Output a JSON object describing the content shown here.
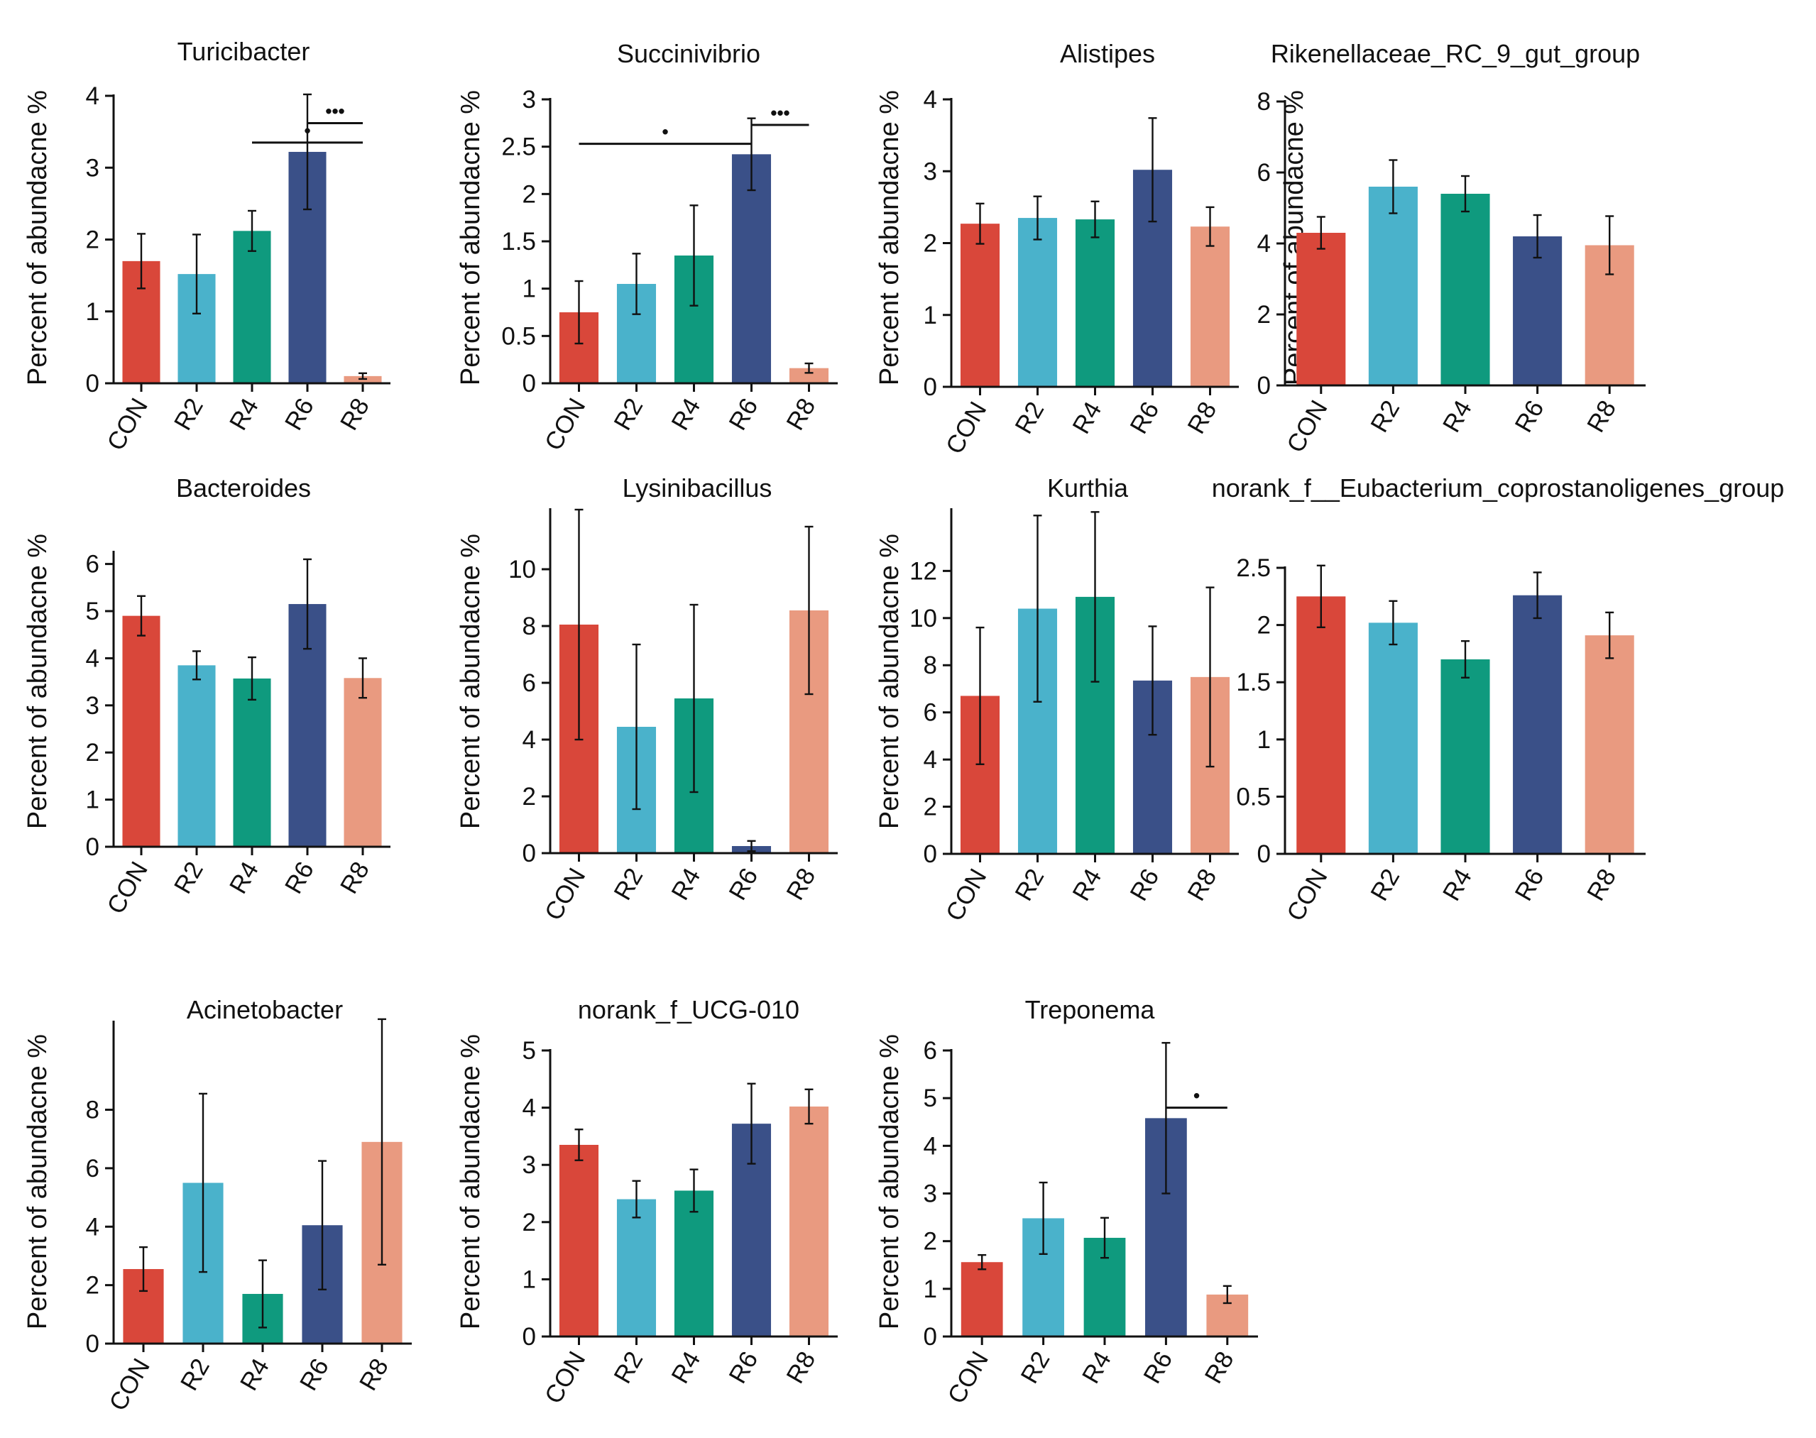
{
  "colors": {
    "CON": "#d9473a",
    "R2": "#4ab2cb",
    "R4": "#0f9a7e",
    "R6": "#3a5088",
    "R8": "#e99a80"
  },
  "chart_data": [
    {
      "type": "bar",
      "title": "Turicibacter",
      "ylabel": "Percent of abundacne %",
      "categories": [
        "CON",
        "R2",
        "R4",
        "R6",
        "R8"
      ],
      "values": [
        1.7,
        1.52,
        2.12,
        3.22,
        0.1
      ],
      "errors": [
        0.38,
        0.55,
        0.28,
        0.8,
        0.04
      ],
      "yticks": [
        0,
        1,
        2,
        3,
        4
      ],
      "ytick_labels": [
        "0",
        "1",
        "2",
        "3",
        "4"
      ],
      "ylim": [
        0,
        4
      ],
      "significance": [
        {
          "from": "R4",
          "to": "R8",
          "y": 3.35,
          "label": "•"
        },
        {
          "from": "R6",
          "to": "R8",
          "y": 3.62,
          "label": "•••"
        }
      ]
    },
    {
      "type": "bar",
      "title": "Succinivibrio",
      "ylabel": "Percent of abundacne %",
      "categories": [
        "CON",
        "R2",
        "R4",
        "R6",
        "R8"
      ],
      "values": [
        0.75,
        1.05,
        1.35,
        2.42,
        0.16
      ],
      "errors": [
        0.33,
        0.32,
        0.53,
        0.38,
        0.05
      ],
      "yticks": [
        0,
        0.5,
        1,
        1.5,
        2,
        2.5,
        3
      ],
      "ytick_labels": [
        "0",
        "0.5",
        "1",
        "1.5",
        "2",
        "2.5",
        "3"
      ],
      "ylim": [
        0,
        3
      ],
      "significance": [
        {
          "from": "CON",
          "to": "R6",
          "y": 2.53,
          "label": "•"
        },
        {
          "from": "R6",
          "to": "R8",
          "y": 2.73,
          "label": "•••"
        }
      ]
    },
    {
      "type": "bar",
      "title": "Alistipes",
      "ylabel": "Percent of abundacne %",
      "categories": [
        "CON",
        "R2",
        "R4",
        "R6",
        "R8"
      ],
      "values": [
        2.27,
        2.35,
        2.33,
        3.02,
        2.23
      ],
      "errors": [
        0.28,
        0.3,
        0.25,
        0.72,
        0.27
      ],
      "yticks": [
        0,
        1,
        2,
        3,
        4
      ],
      "ytick_labels": [
        "0",
        "1",
        "2",
        "3",
        "4"
      ],
      "ylim": [
        0,
        4
      ],
      "significance": []
    },
    {
      "type": "bar",
      "title": "Rikenellaceae_RC_9_gut_group",
      "ylabel": "Percent of abundacne %",
      "categories": [
        "CON",
        "R2",
        "R4",
        "R6",
        "R8"
      ],
      "values": [
        4.3,
        5.6,
        5.4,
        4.2,
        3.95
      ],
      "errors": [
        0.45,
        0.75,
        0.5,
        0.6,
        0.82
      ],
      "yticks": [
        0,
        2,
        4,
        6,
        8
      ],
      "ytick_labels": [
        "0",
        "2",
        "4",
        "6",
        "8"
      ],
      "ylim": [
        0,
        8
      ],
      "significance": []
    },
    {
      "type": "bar",
      "title": "Bacteroides",
      "ylabel": "Percent of abundacne %",
      "categories": [
        "CON",
        "R2",
        "R4",
        "R6",
        "R8"
      ],
      "values": [
        4.9,
        3.85,
        3.57,
        5.15,
        3.58
      ],
      "errors": [
        0.42,
        0.3,
        0.45,
        0.95,
        0.42
      ],
      "yticks": [
        0,
        1,
        2,
        3,
        4,
        5,
        6
      ],
      "ytick_labels": [
        "0",
        "1",
        "2",
        "3",
        "4",
        "5",
        "6"
      ],
      "ylim": [
        0,
        6.25
      ],
      "significance": []
    },
    {
      "type": "bar",
      "title": "Lysinibacillus",
      "ylabel": "Percent of abundacne %",
      "categories": [
        "CON",
        "R2",
        "R4",
        "R6",
        "R8"
      ],
      "values": [
        8.05,
        4.45,
        5.45,
        0.25,
        8.55
      ],
      "errors": [
        4.05,
        2.9,
        3.3,
        0.18,
        2.95
      ],
      "yticks": [
        0,
        2,
        4,
        6,
        8,
        10
      ],
      "ytick_labels": [
        "0",
        "2",
        "4",
        "6",
        "8",
        "10"
      ],
      "ylim": [
        0,
        12.1
      ],
      "significance": []
    },
    {
      "type": "bar",
      "title": "Kurthia",
      "ylabel": "Percent of abundacne %",
      "categories": [
        "CON",
        "R2",
        "R4",
        "R6",
        "R8"
      ],
      "values": [
        6.7,
        10.4,
        10.9,
        7.35,
        7.5
      ],
      "errors": [
        2.9,
        3.95,
        3.6,
        2.3,
        3.8
      ],
      "yticks": [
        0,
        2,
        4,
        6,
        8,
        10,
        12
      ],
      "ytick_labels": [
        "0",
        "2",
        "4",
        "6",
        "8",
        "10",
        "12"
      ],
      "ylim": [
        0,
        14.6
      ],
      "significance": []
    },
    {
      "type": "bar",
      "title": "norank_f__Eubacterium_coprostanoligenes_group",
      "ylabel": "",
      "categories": [
        "CON",
        "R2",
        "R4",
        "R6",
        "R8"
      ],
      "values": [
        2.25,
        2.02,
        1.7,
        2.26,
        1.91
      ],
      "errors": [
        0.27,
        0.19,
        0.16,
        0.2,
        0.2
      ],
      "yticks": [
        0,
        0.5,
        1,
        1.5,
        2,
        2.5
      ],
      "ytick_labels": [
        "0",
        "0.5",
        "1",
        "1.5",
        "2",
        "2.5"
      ],
      "ylim": [
        0,
        2.5
      ],
      "significance": []
    },
    {
      "type": "bar",
      "title": "Acinetobacter",
      "ylabel": "Percent of abundacne %",
      "categories": [
        "CON",
        "R2",
        "R4",
        "R6",
        "R8"
      ],
      "values": [
        2.55,
        5.5,
        1.7,
        4.05,
        6.9
      ],
      "errors": [
        0.75,
        3.05,
        1.15,
        2.2,
        4.2
      ],
      "yticks": [
        0,
        2,
        4,
        6,
        8
      ],
      "ytick_labels": [
        "0",
        "2",
        "4",
        "6",
        "8"
      ],
      "ylim": [
        0,
        11
      ],
      "significance": []
    },
    {
      "type": "bar",
      "title": "norank_f_UCG-010",
      "ylabel": "Percent of abundacne %",
      "categories": [
        "CON",
        "R2",
        "R4",
        "R6",
        "R8"
      ],
      "values": [
        3.35,
        2.4,
        2.55,
        3.72,
        4.02
      ],
      "errors": [
        0.27,
        0.32,
        0.37,
        0.7,
        0.3
      ],
      "yticks": [
        0,
        1,
        2,
        3,
        4,
        5
      ],
      "ytick_labels": [
        "0",
        "1",
        "2",
        "3",
        "4",
        "5"
      ],
      "ylim": [
        0,
        5
      ],
      "significance": []
    },
    {
      "type": "bar",
      "title": "Treponema",
      "ylabel": "Percent of abundacne %",
      "categories": [
        "CON",
        "R2",
        "R4",
        "R6",
        "R8"
      ],
      "values": [
        1.56,
        2.48,
        2.07,
        4.58,
        0.88
      ],
      "errors": [
        0.15,
        0.75,
        0.42,
        1.58,
        0.18
      ],
      "yticks": [
        0,
        1,
        2,
        3,
        4,
        5,
        6
      ],
      "ytick_labels": [
        "0",
        "1",
        "2",
        "3",
        "4",
        "5",
        "6"
      ],
      "ylim": [
        0,
        6
      ],
      "significance": [
        {
          "from": "R6",
          "to": "R8",
          "y": 4.8,
          "label": "•"
        }
      ]
    }
  ]
}
